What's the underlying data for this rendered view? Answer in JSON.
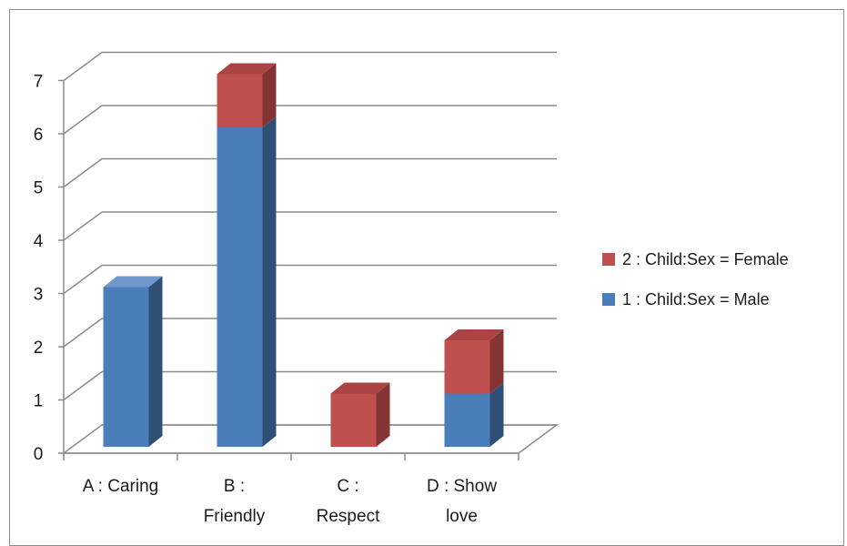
{
  "chart_data": {
    "type": "bar",
    "stacked": true,
    "three_d": true,
    "categories": [
      [
        "A : Caring"
      ],
      [
        "B :",
        "Friendly"
      ],
      [
        "C :",
        "Respect"
      ],
      [
        "D : Show",
        "love"
      ]
    ],
    "series": [
      {
        "name": "1 : Child:Sex = Male",
        "values": [
          3,
          6,
          0,
          1
        ],
        "color": "#4a7ebb",
        "side_color": "#2f4f77",
        "top_color": "#6f97cc"
      },
      {
        "name": "2 : Child:Sex = Female",
        "values": [
          0,
          1,
          1,
          1
        ],
        "color": "#c0504d",
        "side_color": "#843533",
        "top_color": "#a94442"
      }
    ],
    "ylim": [
      0,
      7
    ],
    "yticks": [
      0,
      1,
      2,
      3,
      4,
      5,
      6,
      7
    ],
    "grid": true,
    "legend_position": "right",
    "legend_order": [
      1,
      0
    ]
  }
}
